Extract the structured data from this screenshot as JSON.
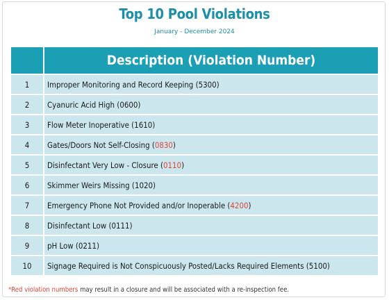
{
  "title": "Top 10 Pool Violations",
  "subtitle": "January - December 2024",
  "table": {
    "header_num": "",
    "header_desc": "Description (Violation Number)",
    "rows": [
      {
        "num": "1",
        "text": "Improper Monitoring and Record Keeping (",
        "code": "5300",
        "code_red": false,
        "suffix": ")"
      },
      {
        "num": "2",
        "text": "Cyanuric Acid High (",
        "code": "0600",
        "code_red": false,
        "suffix": ")"
      },
      {
        "num": "3",
        "text": "Flow Meter Inoperative (",
        "code": "1610",
        "code_red": false,
        "suffix": ")"
      },
      {
        "num": "4",
        "text": "Gates/Doors Not Self-Closing (",
        "code": "0830",
        "code_red": true,
        "suffix": ")"
      },
      {
        "num": "5",
        "text": "Disinfectant Very Low - Closure (",
        "code": "0110",
        "code_red": true,
        "suffix": ")"
      },
      {
        "num": "6",
        "text": "Skimmer Weirs Missing (",
        "code": "1020",
        "code_red": false,
        "suffix": ")"
      },
      {
        "num": "7",
        "text": "Emergency Phone Not Provided and/or Inoperable (",
        "code": "4200",
        "code_red": true,
        "suffix": ")"
      },
      {
        "num": "8",
        "text": "Disinfectant Low (",
        "code": "0111",
        "code_red": false,
        "suffix": ")"
      },
      {
        "num": "9",
        "text": "pH Low (",
        "code": "0211",
        "code_red": false,
        "suffix": ")"
      },
      {
        "num": "10",
        "text": "Signage Required is Not Conspicuously Posted/Lacks Required Elements (",
        "code": "5100",
        "code_red": false,
        "suffix": ")"
      }
    ]
  },
  "footnote": {
    "red_part": "*Red violation numbers",
    "rest": " may result in a closure and will be associated with a re-inspection fee."
  },
  "colors": {
    "title": "#1b8fa8",
    "header_bg": "#1a9fb5",
    "row_bg": "#cbe6ec",
    "highlight_red": "#e0453a"
  }
}
